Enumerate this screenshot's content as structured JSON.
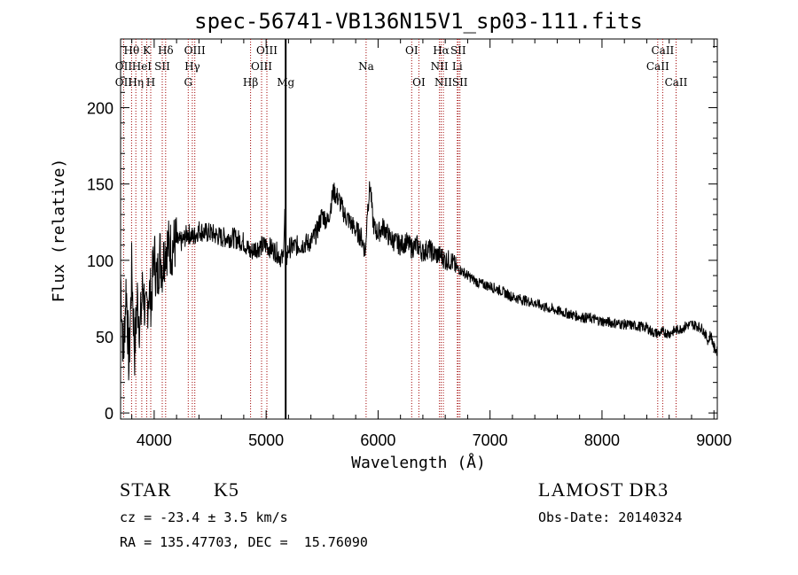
{
  "chart_data": {
    "type": "line",
    "title": "spec-56741-VB136N15V1_sp03-111.fits",
    "xlabel": "Wavelength (Å)",
    "ylabel": "Flux (relative)",
    "xlim": [
      3700,
      9030
    ],
    "ylim": [
      -4,
      245
    ],
    "x_ticks": [
      4000,
      5000,
      6000,
      7000,
      8000,
      9000
    ],
    "x_tick_labels": [
      "4000",
      "5000",
      "6000",
      "7000",
      "8000",
      "9000"
    ],
    "y_ticks": [
      0,
      50,
      100,
      150,
      200
    ],
    "y_tick_labels": [
      "0",
      "50",
      "100",
      "150",
      "200"
    ],
    "series": [
      {
        "name": "spectrum",
        "x": [
          3700,
          3725,
          3750,
          3775,
          3800,
          3825,
          3850,
          3875,
          3900,
          3925,
          3950,
          3975,
          4000,
          4025,
          4050,
          4075,
          4100,
          4150,
          4200,
          4250,
          4300,
          4350,
          4400,
          4450,
          4500,
          4600,
          4700,
          4800,
          4860,
          4900,
          5000,
          5100,
          5150,
          5167,
          5175,
          5200,
          5300,
          5400,
          5450,
          5500,
          5550,
          5600,
          5650,
          5700,
          5750,
          5800,
          5850,
          5890,
          5900,
          5930,
          5950,
          5970,
          6000,
          6050,
          6100,
          6150,
          6200,
          6250,
          6300,
          6350,
          6400,
          6450,
          6500,
          6563,
          6600,
          6650,
          6700,
          6750,
          6800,
          6900,
          7000,
          7100,
          7200,
          7300,
          7400,
          7500,
          7600,
          7700,
          7800,
          7900,
          8000,
          8100,
          8200,
          8300,
          8400,
          8450,
          8500,
          8550,
          8600,
          8650,
          8700,
          8750,
          8800,
          8850,
          8900,
          8950,
          8970,
          9000,
          9030
        ],
        "y": [
          90,
          35,
          85,
          30,
          95,
          40,
          75,
          55,
          85,
          60,
          80,
          75,
          105,
          85,
          105,
          95,
          110,
          108,
          112,
          112,
          118,
          115,
          120,
          118,
          118,
          115,
          115,
          112,
          105,
          108,
          110,
          105,
          100,
          130,
          98,
          108,
          110,
          112,
          118,
          130,
          125,
          145,
          140,
          130,
          125,
          120,
          115,
          105,
          130,
          150,
          128,
          120,
          118,
          122,
          115,
          112,
          110,
          112,
          108,
          110,
          105,
          108,
          104,
          103,
          100,
          100,
          95,
          93,
          90,
          85,
          83,
          80,
          76,
          74,
          72,
          69,
          67,
          65,
          63,
          62,
          60,
          59,
          58,
          57,
          56,
          53,
          52,
          53,
          52,
          54,
          55,
          57,
          58,
          57,
          55,
          47,
          52,
          43,
          40
        ]
      }
    ],
    "lines": [
      {
        "name": "Hθ",
        "wavelength": 3798
      },
      {
        "name": "OII",
        "wavelength": 3727
      },
      {
        "name": "Hη",
        "wavelength": 3836
      },
      {
        "name": "HeI",
        "wavelength": 3889
      },
      {
        "name": "K",
        "wavelength": 3934
      },
      {
        "name": "H",
        "wavelength": 3969
      },
      {
        "name": "Hδ",
        "wavelength": 4102
      },
      {
        "name": "SII",
        "wavelength": 4072
      },
      {
        "name": "OIII",
        "wavelength": 4363
      },
      {
        "name": "Hγ",
        "wavelength": 4341
      },
      {
        "name": "G",
        "wavelength": 4304
      },
      {
        "name": "Hβ",
        "wavelength": 4861
      },
      {
        "name": "OIII",
        "wavelength": 4959
      },
      {
        "name": "OIII",
        "wavelength": 5007
      },
      {
        "name": "Mg",
        "wavelength": 5175
      },
      {
        "name": "Na",
        "wavelength": 5893
      },
      {
        "name": "OI",
        "wavelength": 6300
      },
      {
        "name": "OI",
        "wavelength": 6364
      },
      {
        "name": "Hα",
        "wavelength": 6563
      },
      {
        "name": "NII",
        "wavelength": 6548
      },
      {
        "name": "NII",
        "wavelength": 6583
      },
      {
        "name": "SII",
        "wavelength": 6716
      },
      {
        "name": "SII",
        "wavelength": 6731
      },
      {
        "name": "Li",
        "wavelength": 6708
      },
      {
        "name": "CaII",
        "wavelength": 8498
      },
      {
        "name": "CaII",
        "wavelength": 8542
      },
      {
        "name": "CaII",
        "wavelength": 8662
      }
    ],
    "line_labels": [
      {
        "text": "Hθ",
        "wavelength": 3798,
        "row": 1
      },
      {
        "text": "K",
        "wavelength": 3934,
        "row": 1
      },
      {
        "text": "Hδ",
        "wavelength": 4102,
        "row": 1
      },
      {
        "text": "OIII",
        "wavelength": 4363,
        "row": 1
      },
      {
        "text": "OIII",
        "wavelength": 5007,
        "row": 1
      },
      {
        "text": "OI",
        "wavelength": 6300,
        "row": 1
      },
      {
        "text": "Hα",
        "wavelength": 6563,
        "row": 1
      },
      {
        "text": "SII",
        "wavelength": 6716,
        "row": 1
      },
      {
        "text": "CaII",
        "wavelength": 8542,
        "row": 1
      },
      {
        "text": "OII",
        "wavelength": 3727,
        "row": 2
      },
      {
        "text": "HeI",
        "wavelength": 3889,
        "row": 2
      },
      {
        "text": "SII",
        "wavelength": 4072,
        "row": 2
      },
      {
        "text": "Hγ",
        "wavelength": 4341,
        "row": 2
      },
      {
        "text": "OIII",
        "wavelength": 4959,
        "row": 2
      },
      {
        "text": "NII",
        "wavelength": 6548,
        "row": 2
      },
      {
        "text": "Li",
        "wavelength": 6708,
        "row": 2
      },
      {
        "text": "CaII",
        "wavelength": 8498,
        "row": 2
      },
      {
        "text": "OII",
        "wavelength": 3727,
        "row": 3
      },
      {
        "text": "Hη",
        "wavelength": 3836,
        "row": 3
      },
      {
        "text": "H",
        "wavelength": 3969,
        "row": 3
      },
      {
        "text": "G",
        "wavelength": 4304,
        "row": 3
      },
      {
        "text": "Hβ",
        "wavelength": 4861,
        "row": 3
      },
      {
        "text": "Mg",
        "wavelength": 5175,
        "row": 3
      },
      {
        "text": "Na",
        "wavelength": 5893,
        "row": 2
      },
      {
        "text": "OI",
        "wavelength": 6364,
        "row": 3
      },
      {
        "text": "NII",
        "wavelength": 6583,
        "row": 3
      },
      {
        "text": "SII",
        "wavelength": 6731,
        "row": 3
      },
      {
        "text": "CaII",
        "wavelength": 8662,
        "row": 3
      }
    ],
    "colors": {
      "spectrum": "#000000",
      "lines": "#a00000",
      "axes": "#000000"
    }
  },
  "info": {
    "class_label": "STAR",
    "subclass": "K5",
    "survey": "LAMOST DR3",
    "cz": "cz = -23.4 ± 3.5 km/s",
    "obs_date": "Obs-Date: 20140324",
    "coords": "RA = 135.47703, DEC =  15.76090"
  }
}
